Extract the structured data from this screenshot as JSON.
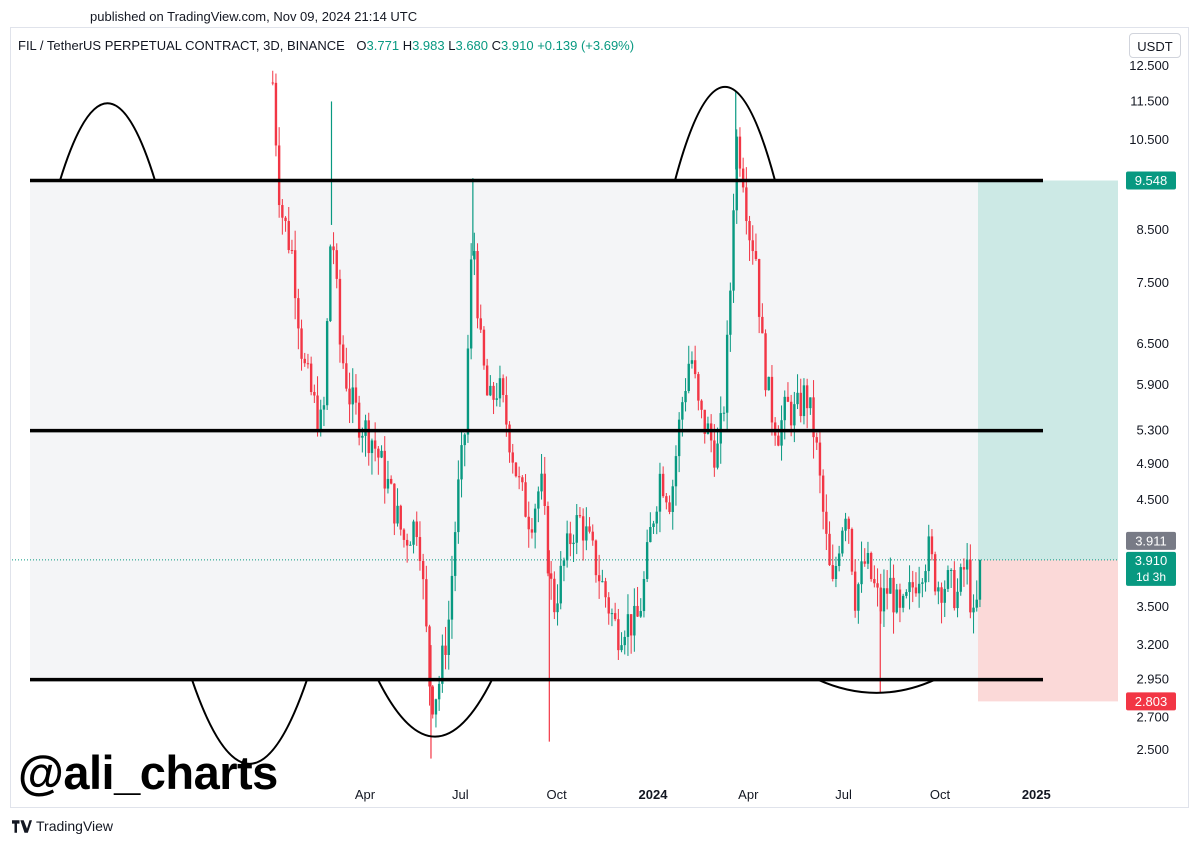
{
  "header": {
    "published": "published on TradingView.com, Nov 09, 2024 21:14 UTC"
  },
  "legend": {
    "symbol": "FIL / TetherUS PERPETUAL CONTRACT, 3D, BINANCE",
    "o_label": "O",
    "o_value": "3.771",
    "h_label": "H",
    "h_value": "3.983",
    "l_label": "L",
    "l_value": "3.680",
    "c_label": "C",
    "c_value": "3.910",
    "change": "+0.139 (+3.69%)"
  },
  "currency_button": "USDT",
  "watermark": "@ali_charts",
  "footer": {
    "brand": "TradingView"
  },
  "colors": {
    "up": "#089981",
    "down": "#f23645",
    "target_zone": "#c9e8e4",
    "stop_zone": "#fbd7d6",
    "channel_fill": "#f4f5f7",
    "level_line": "#000000"
  },
  "chart_data": {
    "type": "candlestick",
    "scale": "log",
    "ylim": [
      2.3,
      13.2
    ],
    "y_ticks": [
      "12.500",
      "11.500",
      "10.500",
      "8.500",
      "7.500",
      "6.500",
      "5.900",
      "5.300",
      "4.900",
      "4.500",
      "3.500",
      "3.200",
      "2.950",
      "2.700",
      "2.500"
    ],
    "x_ticks": [
      "Apr",
      "Jul",
      "Oct",
      "2024",
      "Apr",
      "Jul",
      "Oct",
      "2025"
    ],
    "price_badges": {
      "target": "9.548",
      "last_close_grey": "3.911",
      "current": "3.910",
      "countdown": "1d 3h",
      "stop": "2.803"
    },
    "horizontal_levels": [
      9.548,
      5.3,
      2.95
    ],
    "position": {
      "entry": 3.91,
      "target": 9.548,
      "stop": 2.803
    },
    "price_path": [
      [
        "2023-01-01",
        13.0
      ],
      [
        "2023-01-10",
        9.0
      ],
      [
        "2023-01-22",
        8.0
      ],
      [
        "2023-02-01",
        6.2
      ],
      [
        "2023-02-12",
        5.6
      ],
      [
        "2023-02-20",
        5.3
      ],
      [
        "2023-02-28",
        8.8
      ],
      [
        "2023-03-08",
        6.5
      ],
      [
        "2023-03-18",
        5.7
      ],
      [
        "2023-03-28",
        5.4
      ],
      [
        "2023-04-08",
        5.2
      ],
      [
        "2023-04-22",
        4.7
      ],
      [
        "2023-05-08",
        4.1
      ],
      [
        "2023-05-22",
        4.3
      ],
      [
        "2023-06-03",
        2.8
      ],
      [
        "2023-06-10",
        2.9
      ],
      [
        "2023-06-20",
        3.4
      ],
      [
        "2023-06-28",
        4.5
      ],
      [
        "2023-07-05",
        5.2
      ],
      [
        "2023-07-13",
        8.6
      ],
      [
        "2023-07-20",
        6.5
      ],
      [
        "2023-07-28",
        5.6
      ],
      [
        "2023-08-06",
        5.9
      ],
      [
        "2023-08-16",
        5.3
      ],
      [
        "2023-08-27",
        4.6
      ],
      [
        "2023-09-06",
        4.3
      ],
      [
        "2023-09-16",
        4.7
      ],
      [
        "2023-09-24",
        3.8
      ],
      [
        "2023-09-28",
        3.5
      ],
      [
        "2023-10-06",
        3.8
      ],
      [
        "2023-10-16",
        4.2
      ],
      [
        "2023-10-24",
        4.3
      ],
      [
        "2023-11-03",
        4.0
      ],
      [
        "2023-11-13",
        3.7
      ],
      [
        "2023-11-20",
        3.5
      ],
      [
        "2023-11-28",
        3.3
      ],
      [
        "2023-12-06",
        3.4
      ],
      [
        "2023-12-16",
        3.35
      ],
      [
        "2023-12-22",
        3.6
      ],
      [
        "2023-12-30",
        4.2
      ],
      [
        "2024-01-08",
        4.8
      ],
      [
        "2024-01-18",
        4.5
      ],
      [
        "2024-01-28",
        5.6
      ],
      [
        "2024-02-06",
        6.4
      ],
      [
        "2024-02-14",
        5.5
      ],
      [
        "2024-02-22",
        5.3
      ],
      [
        "2024-03-02",
        5.0
      ],
      [
        "2024-03-08",
        5.5
      ],
      [
        "2024-03-14",
        7.0
      ],
      [
        "2024-03-20",
        10.6
      ],
      [
        "2024-03-26",
        10.0
      ],
      [
        "2024-04-02",
        8.5
      ],
      [
        "2024-04-08",
        8.1
      ],
      [
        "2024-04-14",
        6.5
      ],
      [
        "2024-04-22",
        5.6
      ],
      [
        "2024-04-30",
        5.3
      ],
      [
        "2024-05-08",
        5.6
      ],
      [
        "2024-05-16",
        5.5
      ],
      [
        "2024-05-26",
        5.8
      ],
      [
        "2024-06-04",
        5.2
      ],
      [
        "2024-06-12",
        4.3
      ],
      [
        "2024-06-20",
        3.6
      ],
      [
        "2024-06-28",
        4.2
      ],
      [
        "2024-07-04",
        4.5
      ],
      [
        "2024-07-12",
        3.6
      ],
      [
        "2024-07-22",
        3.9
      ],
      [
        "2024-08-05",
        3.5
      ],
      [
        "2024-08-14",
        3.7
      ],
      [
        "2024-08-24",
        3.4
      ],
      [
        "2024-09-02",
        3.6
      ],
      [
        "2024-09-10",
        3.8
      ],
      [
        "2024-09-20",
        4.0
      ],
      [
        "2024-09-28",
        3.7
      ],
      [
        "2024-10-08",
        3.7
      ],
      [
        "2024-10-18",
        3.6
      ],
      [
        "2024-10-26",
        3.9
      ],
      [
        "2024-11-03",
        3.3
      ],
      [
        "2024-11-09",
        3.91
      ]
    ]
  }
}
